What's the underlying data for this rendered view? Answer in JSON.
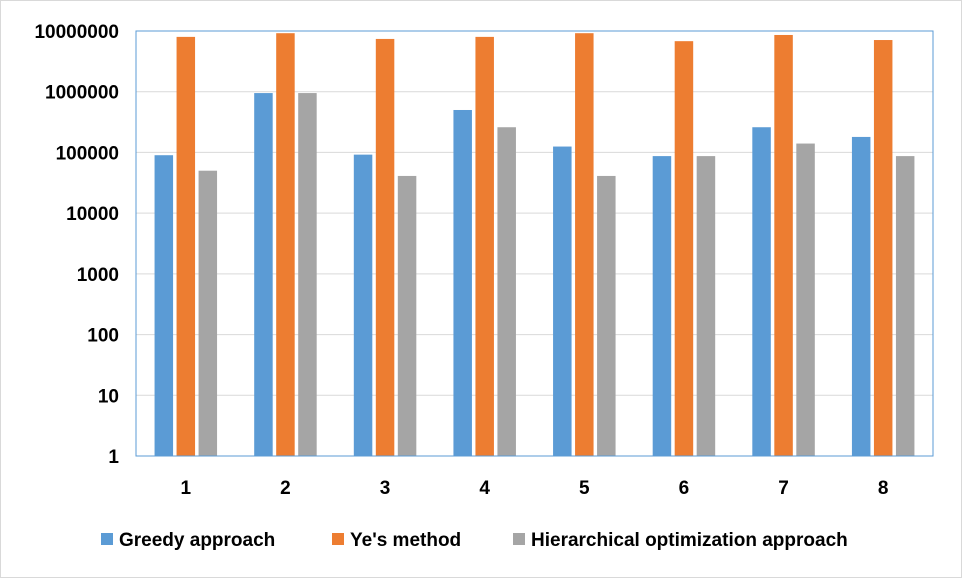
{
  "chart_data": {
    "type": "bar",
    "title": "",
    "xlabel": "",
    "ylabel": "",
    "yscale": "log",
    "ylim": [
      1,
      10000000
    ],
    "yticks": [
      1,
      10,
      100,
      1000,
      10000,
      100000,
      1000000,
      10000000
    ],
    "ytick_labels": [
      "1",
      "10",
      "100",
      "1000",
      "10000",
      "100000",
      "1000000",
      "10000000"
    ],
    "categories": [
      "1",
      "2",
      "3",
      "4",
      "5",
      "6",
      "7",
      "8"
    ],
    "grid": "horizontal",
    "legend_position": "bottom",
    "series": [
      {
        "name": "Greedy approach",
        "color": "#5b9bd5",
        "values": [
          90000,
          950000,
          92000,
          500000,
          125000,
          87000,
          260000,
          180000
        ]
      },
      {
        "name": "Ye's method",
        "color": "#ed7d31",
        "values": [
          8000000,
          9200000,
          7400000,
          8000000,
          9200000,
          6800000,
          8600000,
          7100000
        ]
      },
      {
        "name": "Hierarchical optimization approach",
        "color": "#a5a5a5",
        "values": [
          50000,
          950000,
          41000,
          260000,
          41000,
          87000,
          140000,
          87000
        ]
      }
    ]
  }
}
